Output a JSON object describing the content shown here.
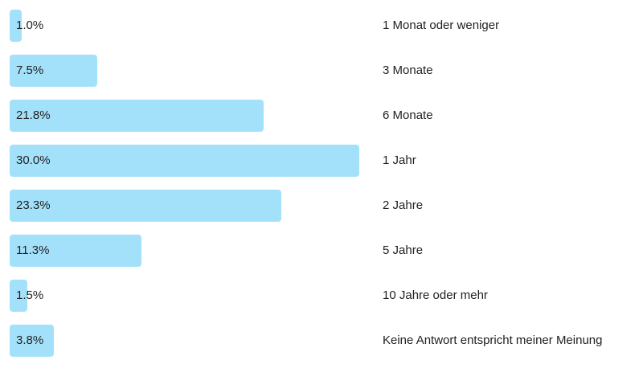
{
  "colors": {
    "bar": "#a3e1fb",
    "text": "#222222",
    "background": "#ffffff"
  },
  "chart_data": {
    "type": "bar",
    "orientation": "horizontal",
    "categories": [
      "1 Monat oder weniger",
      "3 Monate",
      "6 Monate",
      "1 Jahr",
      "2 Jahre",
      "5 Jahre",
      "10 Jahre oder mehr",
      "Keine Antwort entspricht meiner Meinung"
    ],
    "values": [
      1.0,
      7.5,
      21.8,
      30.0,
      23.3,
      11.3,
      1.5,
      3.8
    ],
    "value_labels": [
      "1.0%",
      "7.5%",
      "21.8%",
      "30.0%",
      "23.3%",
      "11.3%",
      "1.5%",
      "3.8%"
    ],
    "unit": "%",
    "grid": false,
    "legend": "none"
  }
}
